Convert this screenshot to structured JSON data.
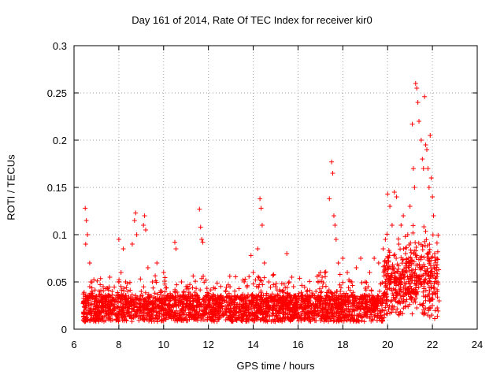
{
  "chart_data": {
    "type": "scatter",
    "title": "Day 161 of 2014, Rate Of TEC Index for receiver kir0",
    "xlabel": "GPS time / hours",
    "ylabel": "ROTI / TECUs",
    "xlim": [
      6,
      24
    ],
    "ylim": [
      0,
      0.3
    ],
    "xticks": [
      "6",
      "8",
      "10",
      "12",
      "14",
      "16",
      "18",
      "20",
      "22",
      "24"
    ],
    "yticks": [
      "0",
      "0.05",
      "0.1",
      "0.15",
      "0.2",
      "0.25",
      "0.3"
    ],
    "grid": true,
    "marker": "plus",
    "color": "#ff0000",
    "series": [
      {
        "name": "ROTI",
        "x": [
          6.45,
          6.5,
          6.52,
          6.55,
          6.6,
          6.7,
          6.75,
          6.8,
          7.0,
          7.3,
          7.6,
          7.7,
          7.8,
          8.0,
          8.1,
          8.2,
          8.3,
          8.4,
          8.6,
          8.7,
          8.75,
          8.8,
          9.0,
          9.1,
          9.15,
          9.2,
          9.3,
          9.5,
          9.7,
          9.9,
          10.0,
          10.2,
          10.5,
          10.55,
          10.8,
          11.0,
          11.2,
          11.6,
          11.65,
          11.7,
          11.75,
          12.0,
          12.3,
          12.6,
          13.0,
          13.3,
          13.6,
          13.9,
          14.0,
          14.1,
          14.2,
          14.3,
          14.35,
          14.4,
          14.5,
          14.7,
          15.0,
          15.3,
          15.5,
          15.6,
          15.8,
          16.0,
          16.3,
          16.5,
          16.8,
          17.0,
          17.1,
          17.2,
          17.4,
          17.5,
          17.55,
          17.6,
          17.65,
          17.7,
          17.8,
          18.0,
          18.2,
          18.4,
          18.6,
          18.8,
          19.0,
          19.2,
          19.4,
          19.6,
          19.8,
          19.9,
          20.0,
          20.1,
          20.2,
          20.3,
          20.4,
          20.5,
          20.6,
          20.7,
          20.8,
          20.9,
          21.0,
          21.1,
          21.15,
          21.2,
          21.25,
          21.3,
          21.35,
          21.4,
          21.5,
          21.55,
          21.6,
          21.65,
          21.7,
          21.75,
          21.8,
          21.85,
          21.9,
          21.95,
          22.0,
          22.05,
          22.1,
          22.2,
          22.3
        ],
        "y": [
          0.03,
          0.128,
          0.09,
          0.115,
          0.1,
          0.07,
          0.05,
          0.04,
          0.035,
          0.045,
          0.055,
          0.04,
          0.03,
          0.095,
          0.06,
          0.085,
          0.05,
          0.04,
          0.09,
          0.115,
          0.123,
          0.1,
          0.04,
          0.11,
          0.12,
          0.105,
          0.065,
          0.05,
          0.07,
          0.04,
          0.06,
          0.035,
          0.092,
          0.085,
          0.05,
          0.045,
          0.03,
          0.127,
          0.108,
          0.095,
          0.092,
          0.03,
          0.035,
          0.025,
          0.03,
          0.035,
          0.05,
          0.078,
          0.06,
          0.052,
          0.085,
          0.138,
          0.128,
          0.11,
          0.07,
          0.05,
          0.045,
          0.04,
          0.08,
          0.05,
          0.045,
          0.035,
          0.03,
          0.035,
          0.04,
          0.06,
          0.045,
          0.06,
          0.138,
          0.177,
          0.165,
          0.12,
          0.11,
          0.095,
          0.07,
          0.075,
          0.06,
          0.05,
          0.065,
          0.075,
          0.05,
          0.06,
          0.075,
          0.07,
          0.085,
          0.095,
          0.143,
          0.13,
          0.11,
          0.145,
          0.14,
          0.09,
          0.11,
          0.12,
          0.08,
          0.1,
          0.13,
          0.217,
          0.17,
          0.15,
          0.26,
          0.255,
          0.24,
          0.22,
          0.2,
          0.18,
          0.17,
          0.246,
          0.195,
          0.19,
          0.17,
          0.15,
          0.205,
          0.16,
          0.14,
          0.12,
          0.08,
          0.05,
          0.03
        ],
        "density": "dense band of points between 0.005 and ~0.06 TECUs from 6.4 h to 22.3 h, rising to ~0.1 after 20 h"
      }
    ]
  }
}
